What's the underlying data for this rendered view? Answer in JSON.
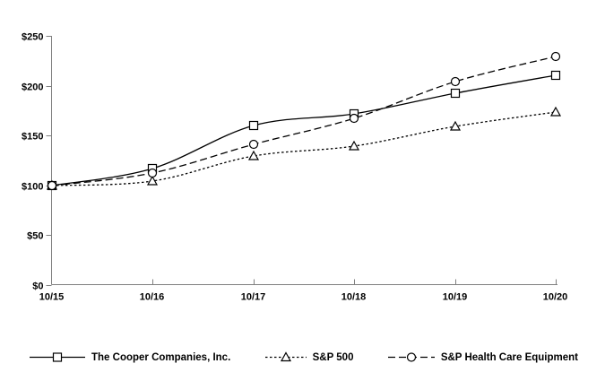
{
  "chart_data": {
    "type": "line",
    "x": [
      "10/15",
      "10/16",
      "10/17",
      "10/18",
      "10/19",
      "10/20"
    ],
    "series": [
      {
        "name": "The Cooper Companies, Inc.",
        "values": [
          100,
          117,
          160,
          172,
          192,
          210
        ],
        "line_style": "solid",
        "marker": "square"
      },
      {
        "name": "S&P 500",
        "values": [
          100,
          104,
          129,
          139,
          159,
          173
        ],
        "line_style": "dotted",
        "marker": "triangle"
      },
      {
        "name": "S&P Health Care Equipment",
        "values": [
          100,
          112,
          141,
          167,
          204,
          229
        ],
        "line_style": "dashed",
        "marker": "circle"
      }
    ],
    "ylim": [
      0,
      250
    ],
    "yticks": [
      0,
      50,
      100,
      150,
      200,
      250
    ],
    "ytick_labels": [
      "$0",
      "$50",
      "$100",
      "$150",
      "$200",
      "$250"
    ],
    "grid": false,
    "legend_position": "bottom",
    "line_color": "#000000",
    "axis_color": "#808080",
    "text_color": "#000000",
    "marker_fill": "#ffffff"
  }
}
